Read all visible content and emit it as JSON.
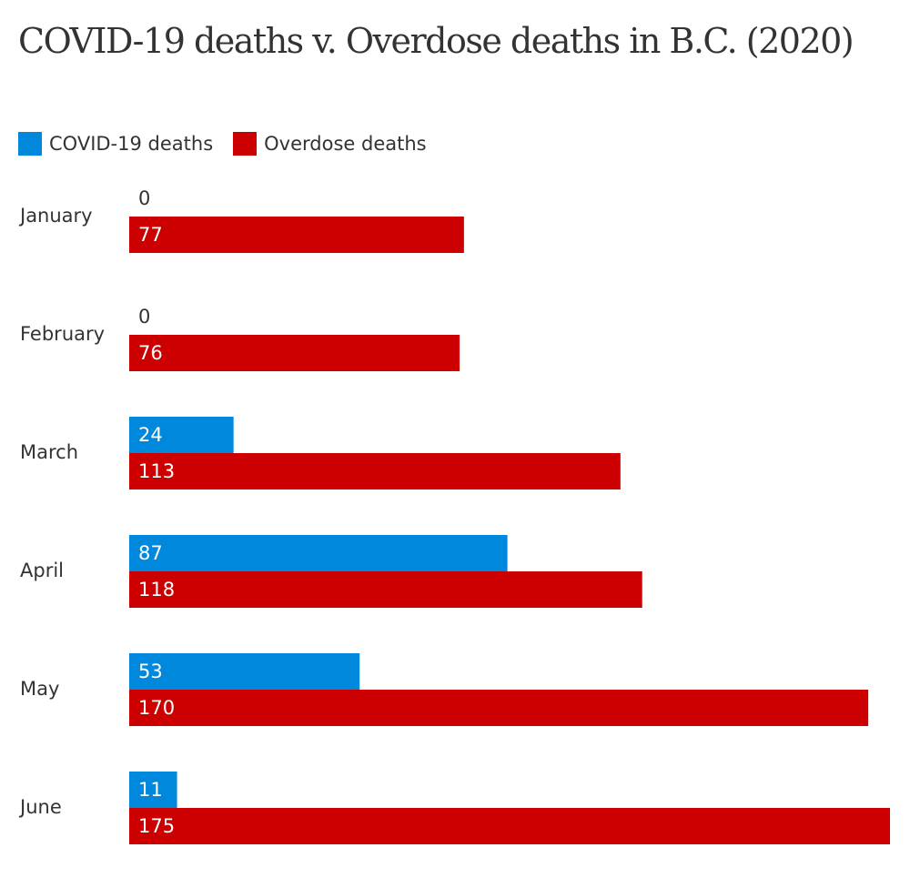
{
  "colors": {
    "covid": "#0088dd",
    "overdose": "#cc0000"
  },
  "chart_data": {
    "type": "bar",
    "orientation": "horizontal",
    "title": "COVID-19 deaths v. Overdose deaths in B.C. (2020)",
    "categories": [
      "January",
      "February",
      "March",
      "April",
      "May",
      "June"
    ],
    "series": [
      {
        "name": "COVID-19 deaths",
        "values": [
          0,
          0,
          24,
          87,
          53,
          11
        ]
      },
      {
        "name": "Overdose deaths",
        "values": [
          77,
          76,
          113,
          118,
          170,
          175
        ]
      }
    ],
    "xlabel": "",
    "ylabel": "",
    "xlim": [
      0,
      175
    ],
    "grid": false,
    "legend": "top-left",
    "data_labels": true
  }
}
